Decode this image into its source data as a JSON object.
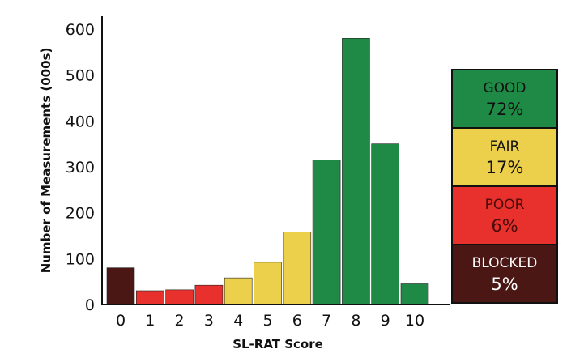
{
  "chart_data": {
    "type": "bar",
    "xlabel": "SL-RAT Score",
    "ylabel": "Number of Measurements (000s)",
    "categories": [
      "0",
      "1",
      "2",
      "3",
      "4",
      "5",
      "6",
      "7",
      "8",
      "9",
      "10"
    ],
    "values": [
      80,
      30,
      32,
      42,
      58,
      92,
      158,
      315,
      580,
      350,
      45
    ],
    "bar_colors": [
      "#4a1715",
      "#e8302c",
      "#e8302c",
      "#e8302c",
      "#ecd04b",
      "#ecd04b",
      "#ecd04b",
      "#1e8a45",
      "#1e8a45",
      "#1e8a45",
      "#1e8a45"
    ],
    "ylim": [
      0,
      640
    ],
    "yticks": [
      0,
      100,
      200,
      300,
      400,
      500,
      600
    ],
    "grid": false,
    "legend": {
      "placement": "right",
      "items": [
        {
          "label": "GOOD",
          "percent": "72%",
          "color": "#1e8a45",
          "text_color": "#111111"
        },
        {
          "label": "FAIR",
          "percent": "17%",
          "color": "#ecd04b",
          "text_color": "#111111"
        },
        {
          "label": "POOR",
          "percent": "6%",
          "color": "#e8302c",
          "text_color": "#4a0d0b"
        },
        {
          "label": "BLOCKED",
          "percent": "5%",
          "color": "#4a1715",
          "text_color": "#ffffff"
        }
      ]
    }
  }
}
